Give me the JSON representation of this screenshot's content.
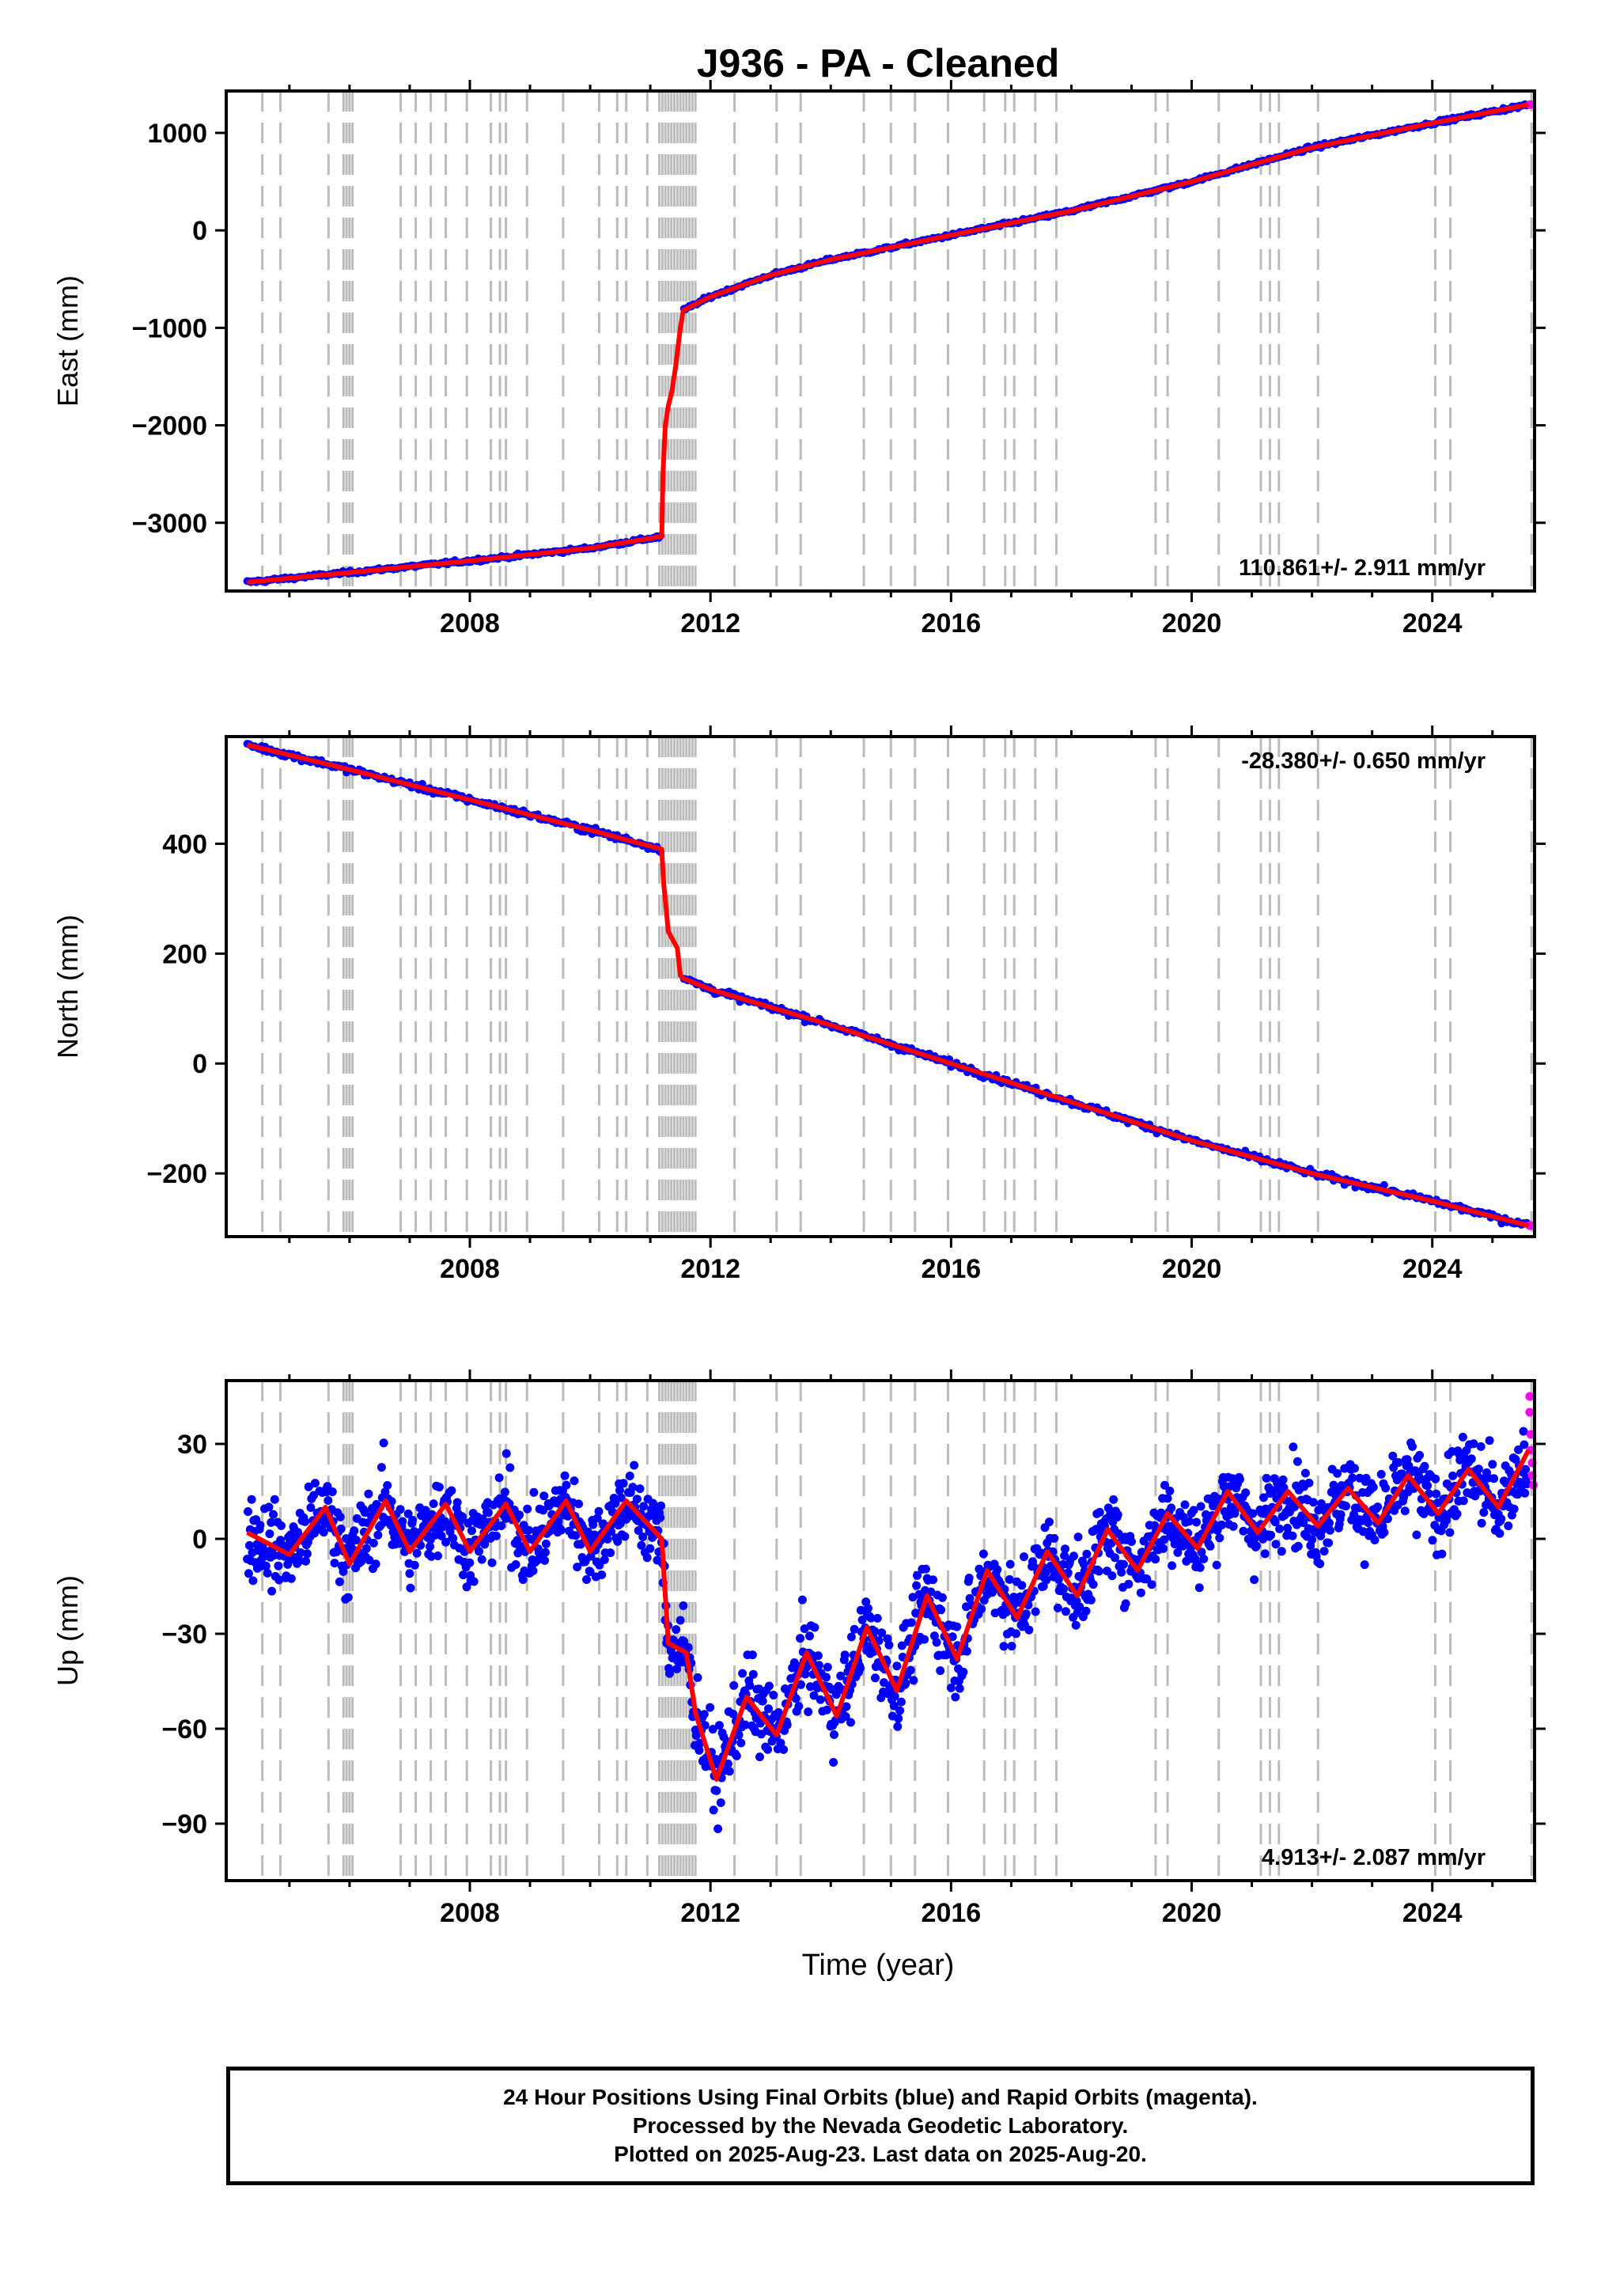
{
  "chart_data": {
    "type": "scatter",
    "title": "J936  - PA - Cleaned",
    "xlabel": "Time (year)",
    "x_ticks": [
      2008,
      2012,
      2016,
      2020,
      2024
    ],
    "xlim": [
      2003.95,
      2025.7
    ],
    "colors": {
      "final_orbits": "#0000ff",
      "rapid_orbits": "#ff00ff",
      "model_fit": "#ff0000",
      "event_lines": "#bbbbbb"
    },
    "panels": [
      {
        "name": "East",
        "ylabel": "East (mm)",
        "ylim": [
          -3700,
          1430
        ],
        "y_ticks": [
          1000,
          0,
          -1000,
          -2000,
          -3000
        ],
        "y_tick_labels": [
          "1000",
          "0",
          "−1000",
          "−2000",
          "−3000"
        ],
        "velocity": "110.861+/- 2.911 mm/yr",
        "velocity_position": "bottom-right",
        "fit_points": [
          [
            2004.3,
            -3610
          ],
          [
            2006.0,
            -3510
          ],
          [
            2008.0,
            -3390
          ],
          [
            2010.0,
            -3260
          ],
          [
            2011.19,
            -3140
          ],
          [
            2011.21,
            -2500
          ],
          [
            2011.25,
            -2000
          ],
          [
            2011.3,
            -1800
          ],
          [
            2011.36,
            -1650
          ],
          [
            2011.42,
            -1400
          ],
          [
            2011.5,
            -1000
          ],
          [
            2011.55,
            -820
          ],
          [
            2012.0,
            -680
          ],
          [
            2013.0,
            -460
          ],
          [
            2014.0,
            -300
          ],
          [
            2016.0,
            -50
          ],
          [
            2018.0,
            200
          ],
          [
            2020.0,
            500
          ],
          [
            2022.0,
            850
          ],
          [
            2024.0,
            1100
          ],
          [
            2025.6,
            1290
          ]
        ]
      },
      {
        "name": "North",
        "ylabel": "North (mm)",
        "ylim": [
          -315,
          595
        ],
        "y_ticks": [
          400,
          200,
          0,
          -200
        ],
        "y_tick_labels": [
          "400",
          "200",
          "0",
          "−200"
        ],
        "velocity": "-28.380+/- 0.650 mm/yr",
        "velocity_position": "top-right",
        "fit_points": [
          [
            2004.3,
            580
          ],
          [
            2006.0,
            535
          ],
          [
            2008.0,
            480
          ],
          [
            2010.0,
            425
          ],
          [
            2011.19,
            390
          ],
          [
            2011.22,
            330
          ],
          [
            2011.3,
            240
          ],
          [
            2011.45,
            210
          ],
          [
            2011.5,
            160
          ],
          [
            2011.55,
            155
          ],
          [
            2012.0,
            135
          ],
          [
            2014.0,
            70
          ],
          [
            2016.0,
            0
          ],
          [
            2018.0,
            -70
          ],
          [
            2020.0,
            -140
          ],
          [
            2022.0,
            -200
          ],
          [
            2024.0,
            -250
          ],
          [
            2025.6,
            -295
          ]
        ]
      },
      {
        "name": "Up",
        "ylabel": "Up (mm)",
        "ylim": [
          -108,
          50
        ],
        "y_ticks": [
          30,
          0,
          -30,
          -60,
          -90
        ],
        "y_tick_labels": [
          "30",
          "0",
          "−30",
          "−60",
          "−90"
        ],
        "velocity": "4.913+/- 2.087 mm/yr",
        "velocity_position": "bottom-right",
        "fit_points": [
          [
            2004.3,
            2
          ],
          [
            2005.0,
            -5
          ],
          [
            2005.6,
            10
          ],
          [
            2006.0,
            -8
          ],
          [
            2006.6,
            12
          ],
          [
            2007.0,
            -4
          ],
          [
            2007.6,
            11
          ],
          [
            2008.0,
            -4
          ],
          [
            2008.6,
            11
          ],
          [
            2009.0,
            -4
          ],
          [
            2009.6,
            12
          ],
          [
            2010.0,
            -4
          ],
          [
            2010.6,
            12
          ],
          [
            2011.19,
            0
          ],
          [
            2011.3,
            -33
          ],
          [
            2011.6,
            -36
          ],
          [
            2011.75,
            -55
          ],
          [
            2012.1,
            -76
          ],
          [
            2012.6,
            -50
          ],
          [
            2013.1,
            -62
          ],
          [
            2013.6,
            -36
          ],
          [
            2014.1,
            -56
          ],
          [
            2014.6,
            -28
          ],
          [
            2015.1,
            -48
          ],
          [
            2015.6,
            -18
          ],
          [
            2016.1,
            -38
          ],
          [
            2016.6,
            -10
          ],
          [
            2017.1,
            -25
          ],
          [
            2017.6,
            -4
          ],
          [
            2018.1,
            -18
          ],
          [
            2018.6,
            3
          ],
          [
            2019.1,
            -10
          ],
          [
            2019.6,
            8
          ],
          [
            2020.1,
            -3
          ],
          [
            2020.6,
            15
          ],
          [
            2021.1,
            2
          ],
          [
            2021.6,
            15
          ],
          [
            2022.1,
            4
          ],
          [
            2022.6,
            16
          ],
          [
            2023.1,
            5
          ],
          [
            2023.6,
            20
          ],
          [
            2024.1,
            8
          ],
          [
            2024.6,
            22
          ],
          [
            2025.1,
            10
          ],
          [
            2025.6,
            28
          ]
        ],
        "rapid_points": [
          [
            2025.62,
            45
          ],
          [
            2025.62,
            40
          ],
          [
            2025.64,
            33
          ],
          [
            2025.64,
            28
          ],
          [
            2025.66,
            24
          ],
          [
            2025.66,
            20
          ],
          [
            2025.68,
            17
          ]
        ]
      }
    ],
    "event_line_years": [
      2004.55,
      2004.85,
      2005.65,
      2005.9,
      2005.95,
      2006.0,
      2006.05,
      2006.85,
      2007.1,
      2007.35,
      2007.6,
      2007.95,
      2008.35,
      2008.5,
      2008.6,
      2008.95,
      2009.55,
      2010.15,
      2010.45,
      2010.6,
      2010.95,
      2011.15,
      2011.2,
      2011.25,
      2011.3,
      2011.35,
      2011.4,
      2011.45,
      2011.5,
      2011.55,
      2011.6,
      2011.65,
      2011.7,
      2011.75,
      2012.4,
      2013.1,
      2013.5,
      2014.55,
      2015.0,
      2015.4,
      2015.95,
      2016.55,
      2016.9,
      2017.05,
      2017.4,
      2017.75,
      2019.4,
      2019.6,
      2020.45,
      2021.15,
      2021.3,
      2021.45,
      2022.1,
      2024.05,
      2024.3,
      2025.65
    ]
  },
  "footer": {
    "line1": "24 Hour Positions Using Final Orbits (blue) and Rapid Orbits (magenta).",
    "line2": "Processed by the Nevada Geodetic Laboratory.",
    "line3": "Plotted on 2025-Aug-23. Last data on 2025-Aug-20."
  }
}
